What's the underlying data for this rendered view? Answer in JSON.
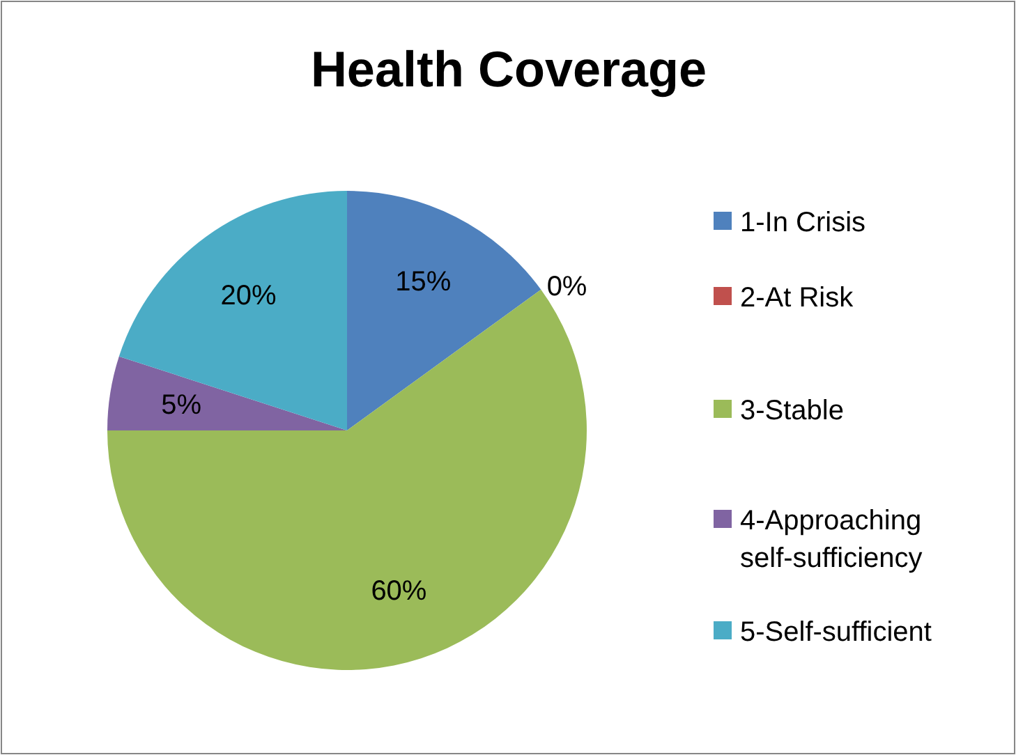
{
  "chart_data": {
    "type": "pie",
    "title": "Health Coverage",
    "categories": [
      "1-In Crisis",
      "2-At Risk",
      "3-Stable",
      "4-Approaching self-sufficiency",
      "5-Self-sufficient"
    ],
    "values": [
      15,
      0,
      60,
      5,
      20
    ],
    "colors": [
      "#4f81bd",
      "#c0504d",
      "#9bbb59",
      "#8064a2",
      "#4bacc6"
    ],
    "value_labels": [
      "15%",
      "0%",
      "60%",
      "5%",
      "20%"
    ],
    "legend": "right"
  }
}
